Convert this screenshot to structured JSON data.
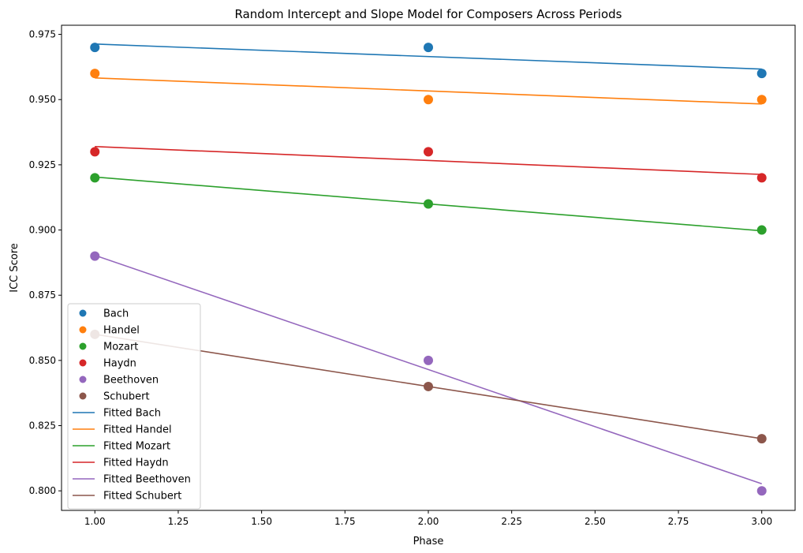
{
  "chart_data": {
    "type": "scatter",
    "title": "Random Intercept and Slope Model for Composers Across Periods",
    "xlabel": "Phase",
    "ylabel": "ICC Score",
    "xlim": [
      0.9,
      3.1
    ],
    "ylim": [
      0.7925,
      0.9785
    ],
    "xticks": [
      1.0,
      1.25,
      1.5,
      1.75,
      2.0,
      2.25,
      2.5,
      2.75,
      3.0
    ],
    "xtick_labels": [
      "1.00",
      "1.25",
      "1.50",
      "1.75",
      "2.00",
      "2.25",
      "2.50",
      "2.75",
      "3.00"
    ],
    "yticks": [
      0.8,
      0.825,
      0.85,
      0.875,
      0.9,
      0.925,
      0.95,
      0.975
    ],
    "ytick_labels": [
      "0.800",
      "0.825",
      "0.850",
      "0.875",
      "0.900",
      "0.925",
      "0.950",
      "0.975"
    ],
    "grid": false,
    "legend_position": "lower-left",
    "x": [
      1,
      2,
      3
    ],
    "series": [
      {
        "name": "Bach",
        "color": "#1f77b4",
        "values": [
          0.97,
          0.97,
          0.96
        ],
        "fitted": [
          0.9713,
          0.9617
        ],
        "fitted_name": "Fitted Bach"
      },
      {
        "name": "Handel",
        "color": "#ff7f0e",
        "values": [
          0.96,
          0.95,
          0.95
        ],
        "fitted": [
          0.9583,
          0.9483
        ],
        "fitted_name": "Fitted Handel"
      },
      {
        "name": "Mozart",
        "color": "#2ca02c",
        "values": [
          0.92,
          0.91,
          0.9
        ],
        "fitted": [
          0.9203,
          0.8997
        ],
        "fitted_name": "Fitted Mozart"
      },
      {
        "name": "Haydn",
        "color": "#d62728",
        "values": [
          0.93,
          0.93,
          0.92
        ],
        "fitted": [
          0.932,
          0.9213
        ],
        "fitted_name": "Fitted Haydn"
      },
      {
        "name": "Beethoven",
        "color": "#9467bd",
        "values": [
          0.89,
          0.85,
          0.8
        ],
        "fitted": [
          0.8903,
          0.8027
        ],
        "fitted_name": "Fitted Beethoven"
      },
      {
        "name": "Schubert",
        "color": "#8c564b",
        "values": [
          0.86,
          0.84,
          0.82
        ],
        "fitted": [
          0.86,
          0.82
        ],
        "fitted_name": "Fitted Schubert"
      }
    ]
  }
}
